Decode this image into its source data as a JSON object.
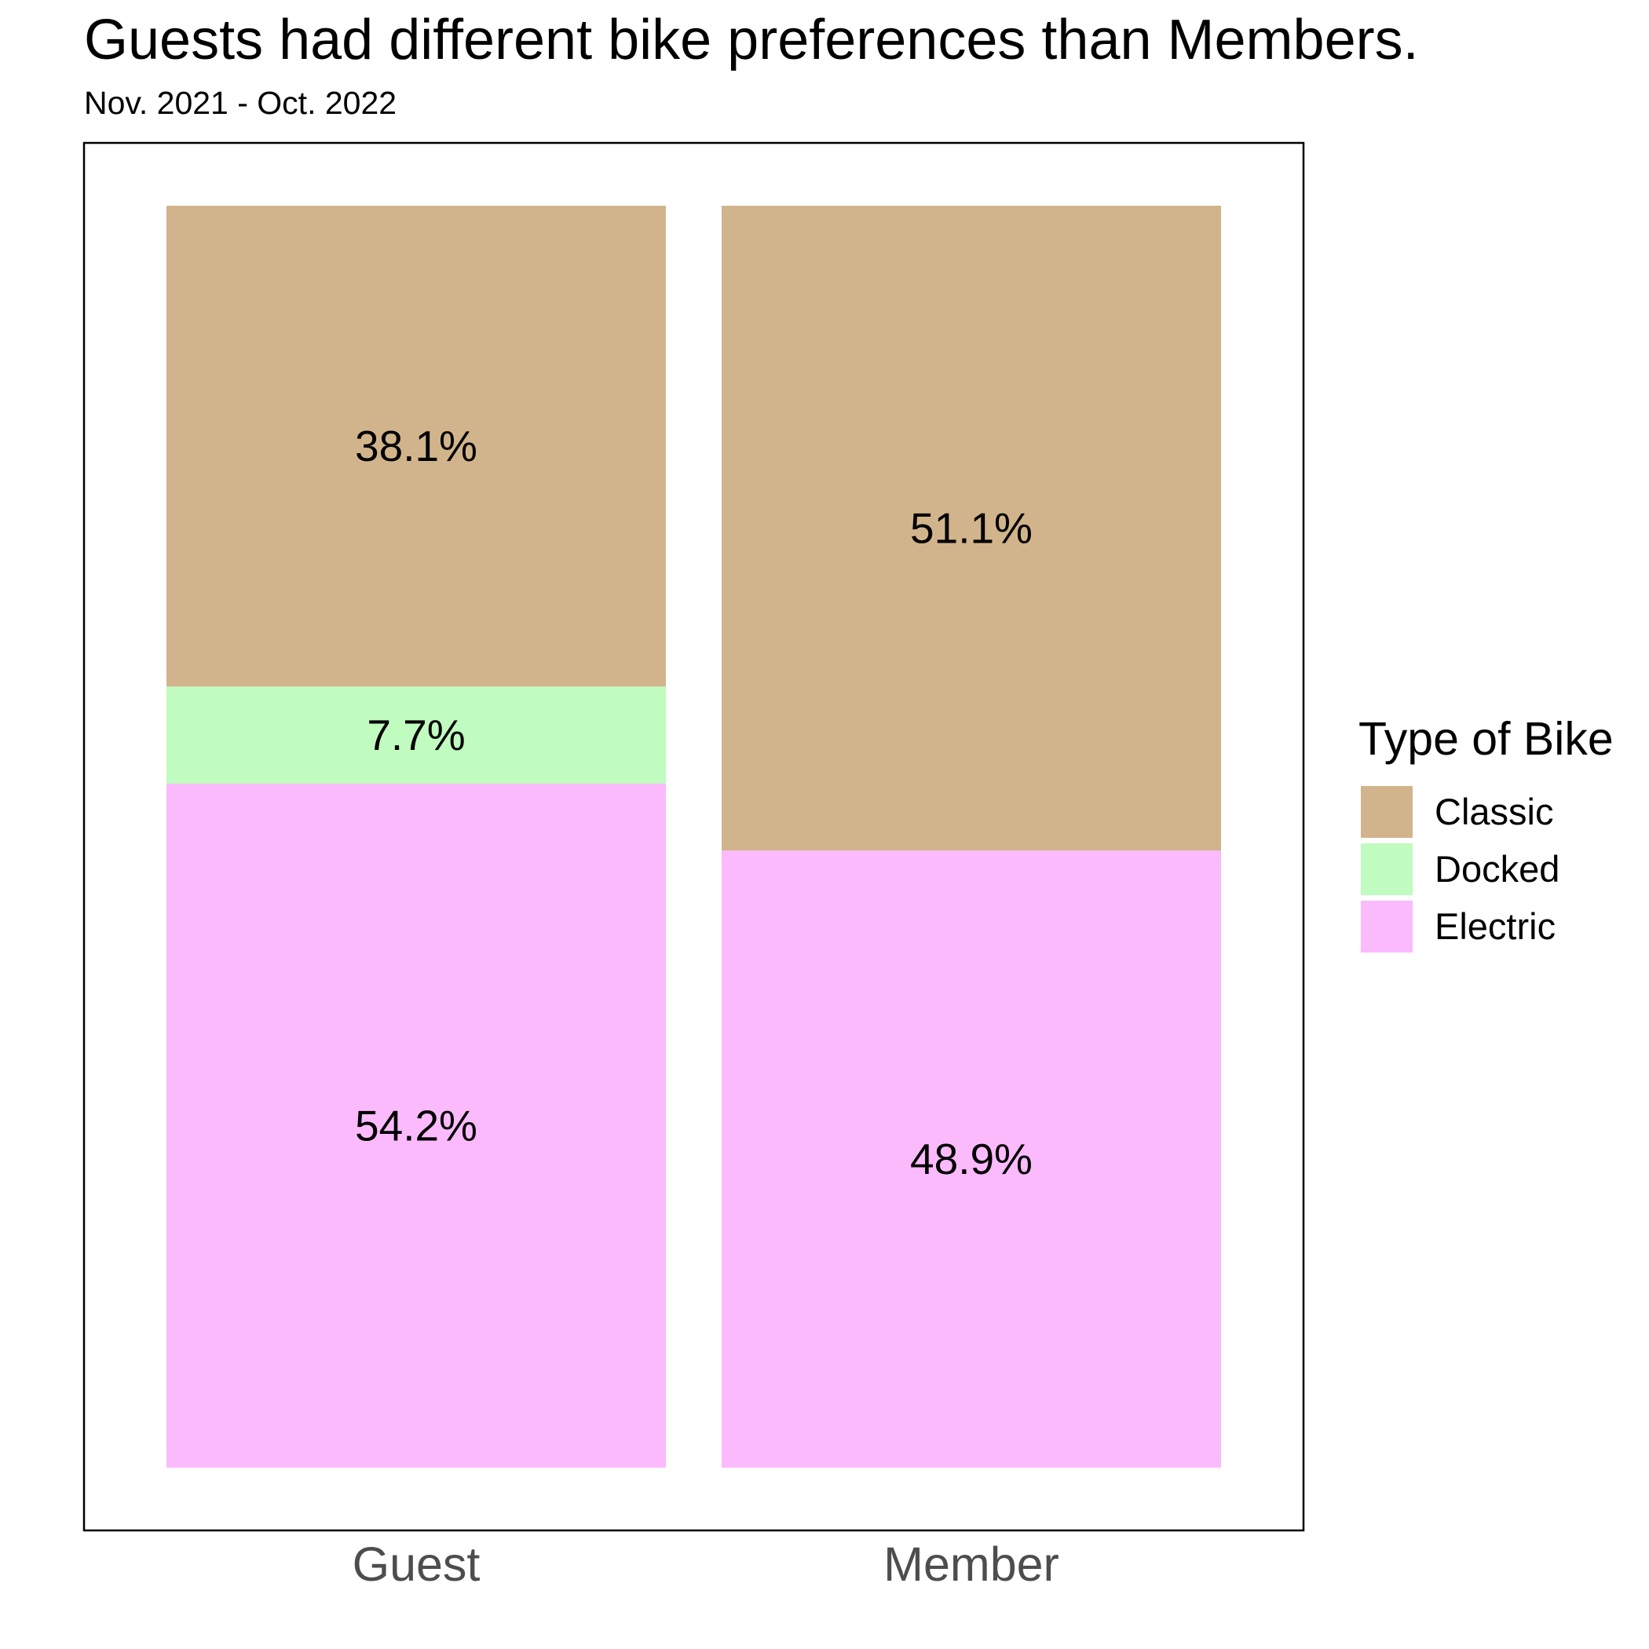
{
  "chart_data": {
    "type": "bar",
    "stacked": true,
    "title": "Guests had different bike preferences than Members.",
    "subtitle": "Nov. 2021 - Oct. 2022",
    "xlabel": "",
    "ylabel": "",
    "categories": [
      "Guest",
      "Member"
    ],
    "ylim": [
      0,
      100
    ],
    "grid": false,
    "series": [
      {
        "name": "Electric",
        "color": "#FBBAFB",
        "values": [
          54.2,
          48.9
        ],
        "labels": [
          "54.2%",
          "48.9%"
        ]
      },
      {
        "name": "Docked",
        "color": "#C0FBC0",
        "values": [
          7.7,
          0
        ],
        "labels": [
          "7.7%",
          ""
        ]
      },
      {
        "name": "Classic",
        "color": "#D2B48C",
        "values": [
          38.1,
          51.1
        ],
        "labels": [
          "38.1%",
          "51.1%"
        ]
      }
    ],
    "legend": {
      "title": "Type of Bike",
      "placement": "right",
      "entries": [
        "Classic",
        "Docked",
        "Electric"
      ]
    }
  }
}
